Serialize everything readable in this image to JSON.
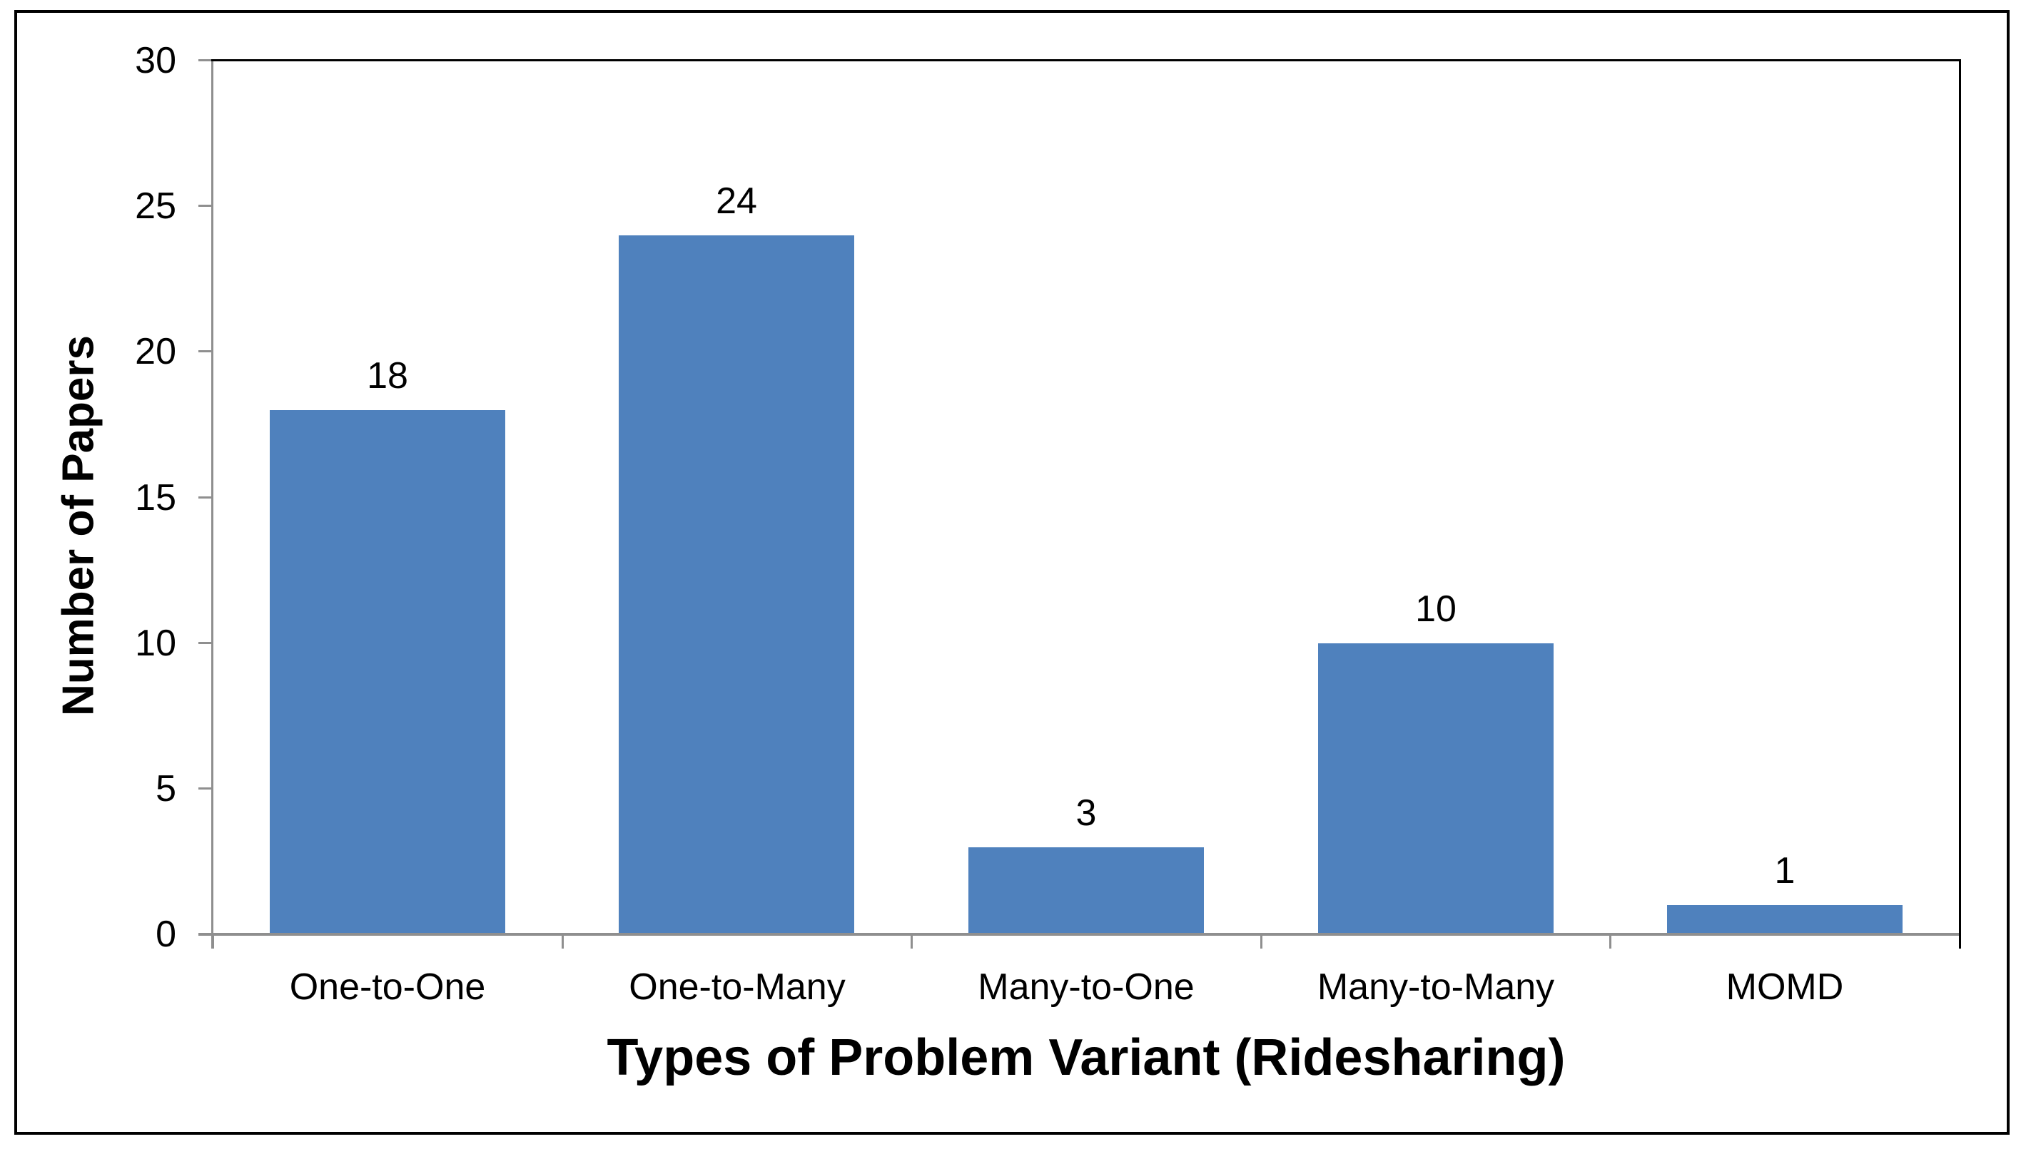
{
  "chart_data": {
    "type": "bar",
    "title": "",
    "categories": [
      "One-to-One",
      "One-to-Many",
      "Many-to-One",
      "Many-to-Many",
      "MOMD"
    ],
    "values": [
      18,
      24,
      3,
      10,
      1
    ],
    "data_labels": [
      "18",
      "24",
      "3",
      "10",
      "1"
    ],
    "xlabel": "Types of Problem Variant (Ridesharing)",
    "ylabel": "Number of Papers",
    "yticks": [
      0,
      5,
      10,
      15,
      20,
      25,
      30
    ],
    "ylim": [
      0,
      30
    ],
    "grid": false,
    "legend": "none",
    "layout_hints": {
      "bar_fill": "#4F81BD",
      "axis_line": "#8F8F8F",
      "plot_top_right_border": "#000000",
      "figure_border": "#000000",
      "text": "#000000"
    }
  }
}
